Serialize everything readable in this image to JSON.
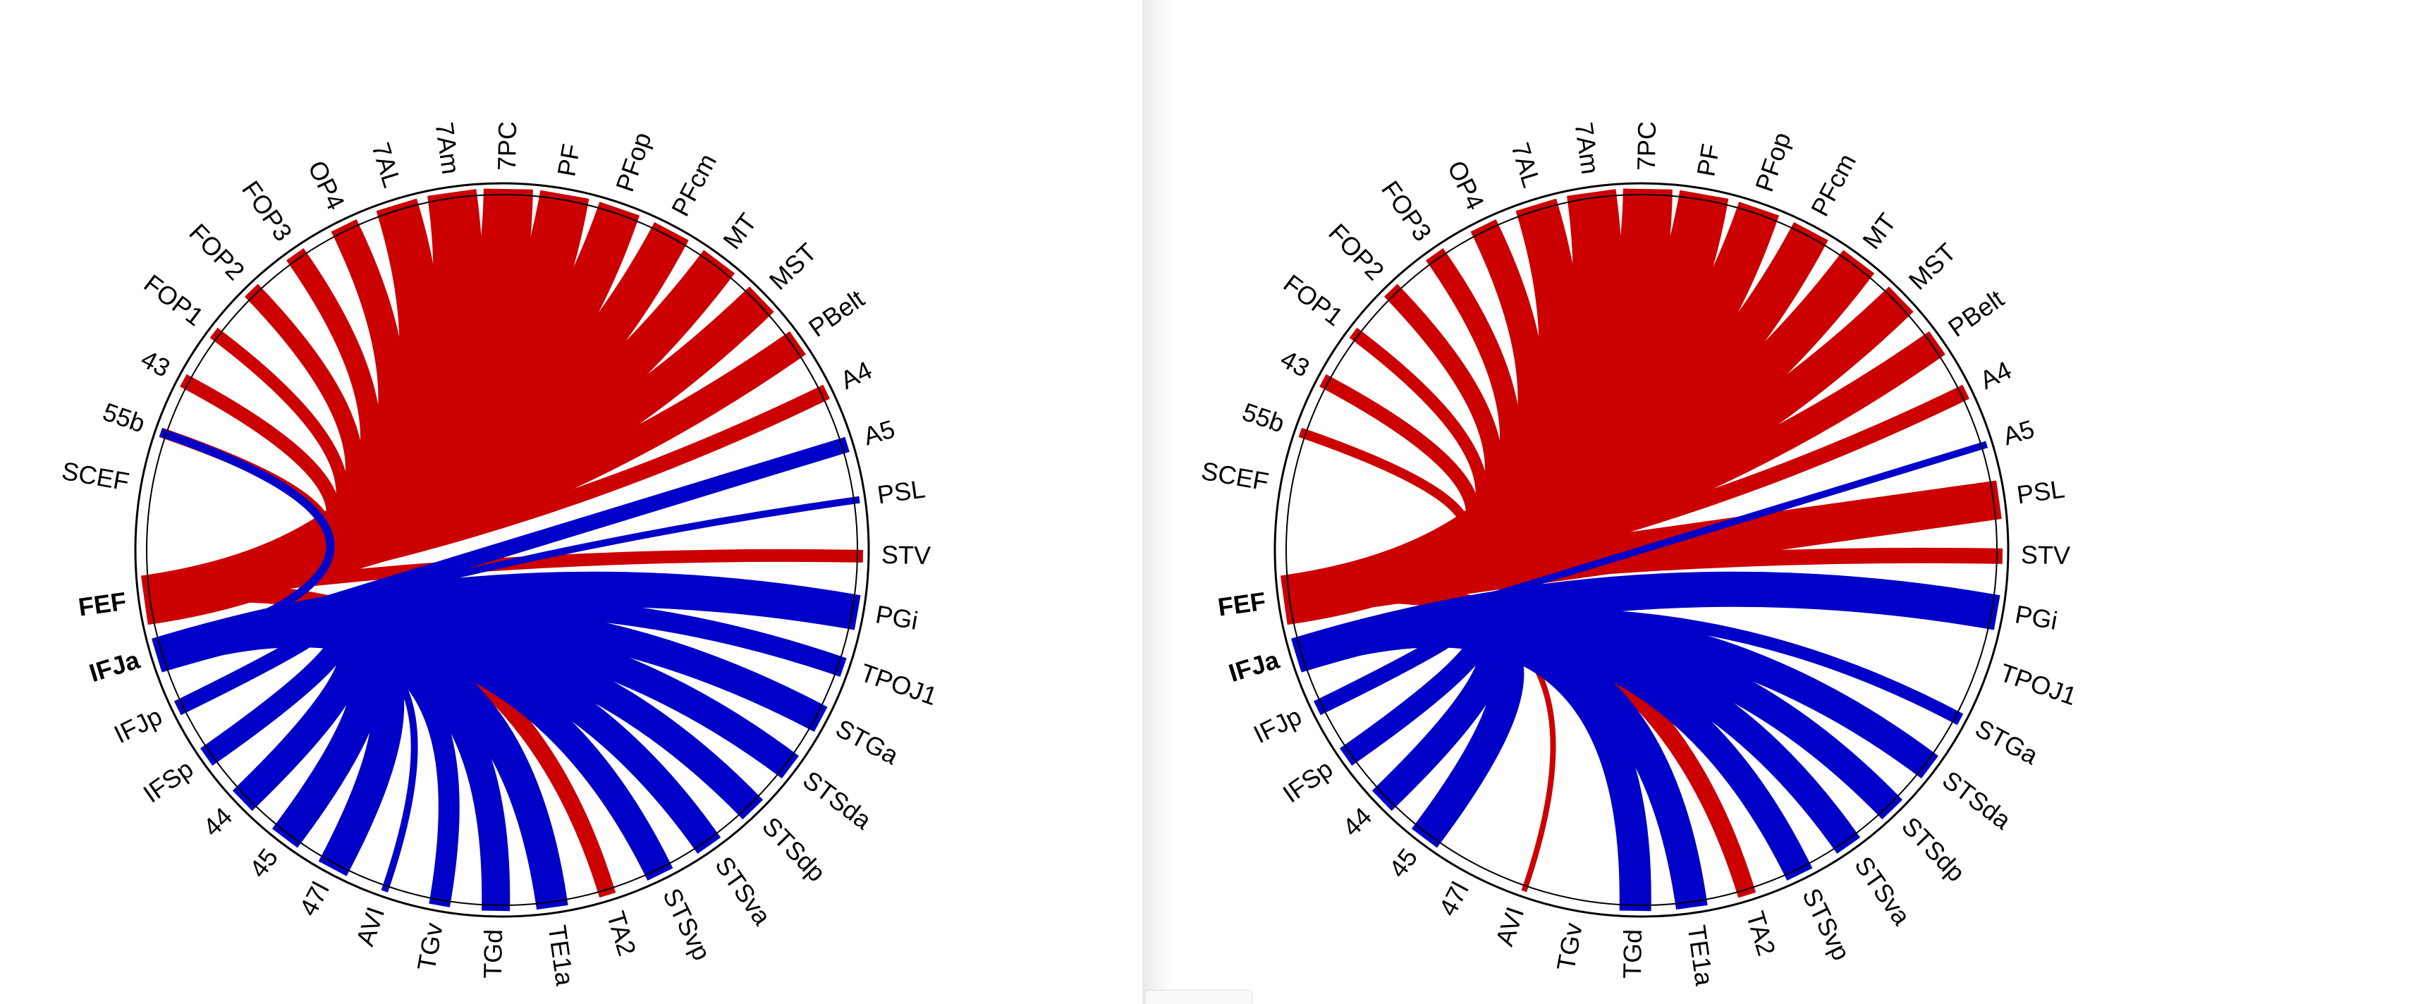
{
  "colors": {
    "red": "#cc0000",
    "blue": "#0000c8",
    "ring": "#000000",
    "background": "#ffffff"
  },
  "regions": [
    "SCEF",
    "55b",
    "43",
    "FOP1",
    "FOP2",
    "FOP3",
    "OP4",
    "7AL",
    "7Am",
    "7PC",
    "PF",
    "PFop",
    "PFcm",
    "MT",
    "MST",
    "PBelt",
    "A4",
    "A5",
    "PSL",
    "STV",
    "PGi",
    "TPOJ1",
    "STGa",
    "STSda",
    "STSdp",
    "STSva",
    "STSvp",
    "TA2",
    "TE1a",
    "TGd",
    "TGv",
    "AVI",
    "47l",
    "45",
    "44",
    "IFSp",
    "IFJp",
    "IFJa",
    "FEF"
  ],
  "seeds": [
    {
      "label": "FEF",
      "color": "red"
    },
    {
      "label": "IFJa",
      "color": "blue"
    }
  ],
  "diagrams": [
    {
      "name": "left",
      "links": [
        {
          "from": "FEF",
          "to": "FOP1",
          "color": "red",
          "width": 18
        },
        {
          "from": "FEF",
          "to": "FOP2",
          "color": "red",
          "width": 26
        },
        {
          "from": "FEF",
          "to": "FOP3",
          "color": "red",
          "width": 30
        },
        {
          "from": "FEF",
          "to": "OP4",
          "color": "red",
          "width": 40
        },
        {
          "from": "FEF",
          "to": "7AL",
          "color": "red",
          "width": 60
        },
        {
          "from": "FEF",
          "to": "7Am",
          "color": "red",
          "width": 70
        },
        {
          "from": "FEF",
          "to": "7PC",
          "color": "red",
          "width": 70
        },
        {
          "from": "FEF",
          "to": "PF",
          "color": "red",
          "width": 70
        },
        {
          "from": "FEF",
          "to": "PFop",
          "color": "red",
          "width": 60
        },
        {
          "from": "FEF",
          "to": "PFcm",
          "color": "red",
          "width": 55
        },
        {
          "from": "FEF",
          "to": "MT",
          "color": "red",
          "width": 55
        },
        {
          "from": "FEF",
          "to": "MST",
          "color": "red",
          "width": 50
        },
        {
          "from": "FEF",
          "to": "PBelt",
          "color": "red",
          "width": 40
        },
        {
          "from": "FEF",
          "to": "A4",
          "color": "red",
          "width": 22
        },
        {
          "from": "FEF",
          "to": "43",
          "color": "red",
          "width": 20
        },
        {
          "from": "FEF",
          "to": "55b",
          "color": "red",
          "width": 14
        },
        {
          "from": "FEF",
          "to": "STV",
          "color": "red",
          "width": 18
        },
        {
          "from": "FEF",
          "to": "TA2",
          "color": "red",
          "width": 24
        },
        {
          "from": "IFJa",
          "to": "55b",
          "color": "blue",
          "width": 12
        },
        {
          "from": "IFJa",
          "to": "A5",
          "color": "blue",
          "width": 22
        },
        {
          "from": "IFJa",
          "to": "PSL",
          "color": "blue",
          "width": 10
        },
        {
          "from": "IFJa",
          "to": "PGi",
          "color": "blue",
          "width": 50
        },
        {
          "from": "IFJa",
          "to": "TPOJ1",
          "color": "blue",
          "width": 28
        },
        {
          "from": "IFJa",
          "to": "STGa",
          "color": "blue",
          "width": 40
        },
        {
          "from": "IFJa",
          "to": "STSda",
          "color": "blue",
          "width": 40
        },
        {
          "from": "IFJa",
          "to": "STSdp",
          "color": "blue",
          "width": 40
        },
        {
          "from": "IFJa",
          "to": "STSva",
          "color": "blue",
          "width": 40
        },
        {
          "from": "IFJa",
          "to": "STSvp",
          "color": "blue",
          "width": 40
        },
        {
          "from": "IFJa",
          "to": "TE1a",
          "color": "blue",
          "width": 45
        },
        {
          "from": "IFJa",
          "to": "TGd",
          "color": "blue",
          "width": 40
        },
        {
          "from": "IFJa",
          "to": "TGv",
          "color": "blue",
          "width": 30
        },
        {
          "from": "IFJa",
          "to": "AVI",
          "color": "blue",
          "width": 10
        },
        {
          "from": "IFJa",
          "to": "47l",
          "color": "blue",
          "width": 45
        },
        {
          "from": "IFJa",
          "to": "45",
          "color": "blue",
          "width": 45
        },
        {
          "from": "IFJa",
          "to": "44",
          "color": "blue",
          "width": 40
        },
        {
          "from": "IFJa",
          "to": "IFSp",
          "color": "blue",
          "width": 30
        },
        {
          "from": "IFJa",
          "to": "IFJp",
          "color": "blue",
          "width": 22
        }
      ]
    },
    {
      "name": "right",
      "links": [
        {
          "from": "FEF",
          "to": "FOP1",
          "color": "red",
          "width": 18
        },
        {
          "from": "FEF",
          "to": "FOP2",
          "color": "red",
          "width": 26
        },
        {
          "from": "FEF",
          "to": "FOP3",
          "color": "red",
          "width": 30
        },
        {
          "from": "FEF",
          "to": "OP4",
          "color": "red",
          "width": 40
        },
        {
          "from": "FEF",
          "to": "7AL",
          "color": "red",
          "width": 60
        },
        {
          "from": "FEF",
          "to": "7Am",
          "color": "red",
          "width": 70
        },
        {
          "from": "FEF",
          "to": "7PC",
          "color": "red",
          "width": 70
        },
        {
          "from": "FEF",
          "to": "PF",
          "color": "red",
          "width": 70
        },
        {
          "from": "FEF",
          "to": "PFop",
          "color": "red",
          "width": 60
        },
        {
          "from": "FEF",
          "to": "PFcm",
          "color": "red",
          "width": 55
        },
        {
          "from": "FEF",
          "to": "MT",
          "color": "red",
          "width": 55
        },
        {
          "from": "FEF",
          "to": "MST",
          "color": "red",
          "width": 50
        },
        {
          "from": "FEF",
          "to": "PBelt",
          "color": "red",
          "width": 40
        },
        {
          "from": "FEF",
          "to": "A4",
          "color": "red",
          "width": 22
        },
        {
          "from": "FEF",
          "to": "43",
          "color": "red",
          "width": 20
        },
        {
          "from": "FEF",
          "to": "55b",
          "color": "red",
          "width": 14
        },
        {
          "from": "FEF",
          "to": "PSL",
          "color": "red",
          "width": 55
        },
        {
          "from": "FEF",
          "to": "STV",
          "color": "red",
          "width": 22
        },
        {
          "from": "FEF",
          "to": "TA2",
          "color": "red",
          "width": 26
        },
        {
          "from": "FEF",
          "to": "AVI",
          "color": "red",
          "width": 8
        },
        {
          "from": "IFJa",
          "to": "A5",
          "color": "blue",
          "width": 10
        },
        {
          "from": "IFJa",
          "to": "PGi",
          "color": "blue",
          "width": 50
        },
        {
          "from": "IFJa",
          "to": "STGa",
          "color": "blue",
          "width": 18
        },
        {
          "from": "IFJa",
          "to": "STSda",
          "color": "blue",
          "width": 40
        },
        {
          "from": "IFJa",
          "to": "STSdp",
          "color": "blue",
          "width": 40
        },
        {
          "from": "IFJa",
          "to": "STSva",
          "color": "blue",
          "width": 40
        },
        {
          "from": "IFJa",
          "to": "STSvp",
          "color": "blue",
          "width": 40
        },
        {
          "from": "IFJa",
          "to": "TE1a",
          "color": "blue",
          "width": 45
        },
        {
          "from": "IFJa",
          "to": "TGd",
          "color": "blue",
          "width": 45
        },
        {
          "from": "IFJa",
          "to": "45",
          "color": "blue",
          "width": 45
        },
        {
          "from": "IFJa",
          "to": "44",
          "color": "blue",
          "width": 40
        },
        {
          "from": "IFJa",
          "to": "IFSp",
          "color": "blue",
          "width": 30
        },
        {
          "from": "IFJa",
          "to": "IFJp",
          "color": "blue",
          "width": 22
        }
      ]
    }
  ]
}
